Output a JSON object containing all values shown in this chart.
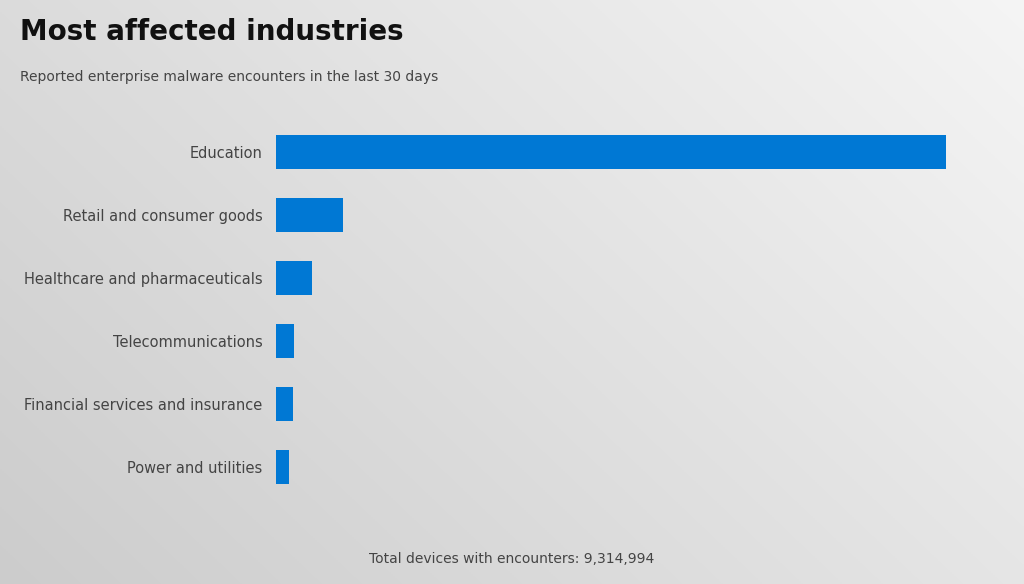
{
  "title": "Most affected industries",
  "subtitle": "Reported enterprise malware encounters in the last 30 days",
  "footer": "Total devices with encounters: 9,314,994",
  "categories": [
    "Education",
    "Retail and consumer goods",
    "Healthcare and pharmaceuticals",
    "Telecommunications",
    "Financial services and insurance",
    "Power and utilities"
  ],
  "values": [
    9000000,
    900000,
    480000,
    230000,
    220000,
    170000
  ],
  "bar_color": "#0078D4",
  "title_fontsize": 20,
  "subtitle_fontsize": 10,
  "label_fontsize": 10.5,
  "footer_fontsize": 10,
  "text_color": "#444444",
  "title_color": "#111111"
}
